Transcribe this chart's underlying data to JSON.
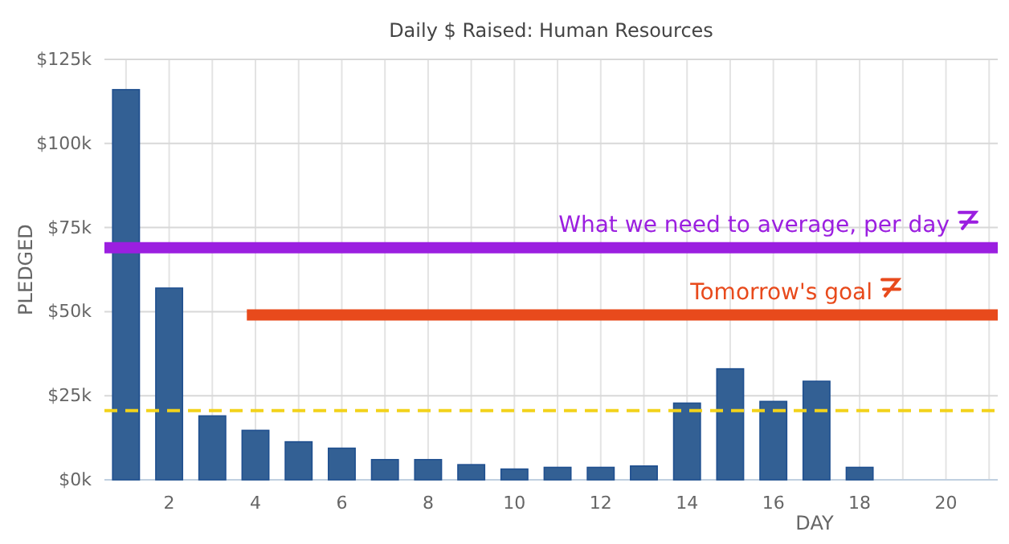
{
  "chart_data": {
    "type": "bar",
    "title": "Daily $ Raised: Human Resources",
    "xlabel": "DAY",
    "ylabel": "PLEDGED",
    "x": [
      1,
      2,
      3,
      4,
      5,
      6,
      7,
      8,
      9,
      10,
      11,
      12,
      13,
      14,
      15,
      16,
      17,
      18
    ],
    "xlim": [
      0.5,
      21.2
    ],
    "xticks": [
      {
        "value": 1,
        "label": null
      },
      2,
      {
        "value": 3,
        "label": null
      },
      4,
      {
        "value": 5,
        "label": null
      },
      6,
      {
        "value": 7,
        "label": null
      },
      8,
      {
        "value": 9,
        "label": null
      },
      10,
      {
        "value": 11,
        "label": null
      },
      12,
      {
        "value": 13,
        "label": null
      },
      14,
      {
        "value": 15,
        "label": null
      },
      16,
      {
        "value": 17,
        "label": null
      },
      18,
      {
        "value": 19,
        "label": null
      },
      20,
      {
        "value": 21,
        "label": null
      }
    ],
    "ylim": [
      0,
      125
    ],
    "yticks": [
      {
        "value": 0,
        "label": "$0k"
      },
      {
        "value": 25,
        "label": "$25k"
      },
      {
        "value": 50,
        "label": "$50k"
      },
      {
        "value": 75,
        "label": "$75k"
      },
      {
        "value": 100,
        "label": "$100k"
      },
      {
        "value": 125,
        "label": "$125k"
      }
    ],
    "grid": true,
    "series": [
      {
        "color": "#336094",
        "values": [
          116,
          57,
          19,
          14.7,
          11.3,
          9.4,
          6,
          6,
          4.5,
          3.2,
          3.7,
          3.7,
          4.1,
          22.8,
          33,
          23.3,
          29.3,
          3.7
        ]
      },
      {
        "type": "line",
        "name": "Tomorrow's goal",
        "color": "#e84a1c",
        "x": [
          3.8,
          21.2
        ],
        "values": [
          49,
          49
        ]
      }
    ],
    "ref_lines": [
      {
        "axis": "y",
        "value": 69,
        "label": "What we need to average, per day",
        "color": "#9b1fe0"
      },
      {
        "axis": "y",
        "value": 20.6,
        "color": "#f2d21b",
        "line_style": "dashed"
      }
    ]
  }
}
